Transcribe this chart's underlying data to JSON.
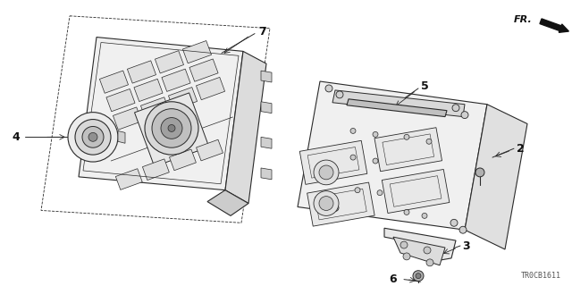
{
  "bg_color": "#ffffff",
  "diagram_code": "TR0CB1611",
  "fr_label": "FR.",
  "line_color": "#2a2a2a",
  "text_color": "#111111",
  "lw": 0.8,
  "fig_w": 6.4,
  "fig_h": 3.2
}
